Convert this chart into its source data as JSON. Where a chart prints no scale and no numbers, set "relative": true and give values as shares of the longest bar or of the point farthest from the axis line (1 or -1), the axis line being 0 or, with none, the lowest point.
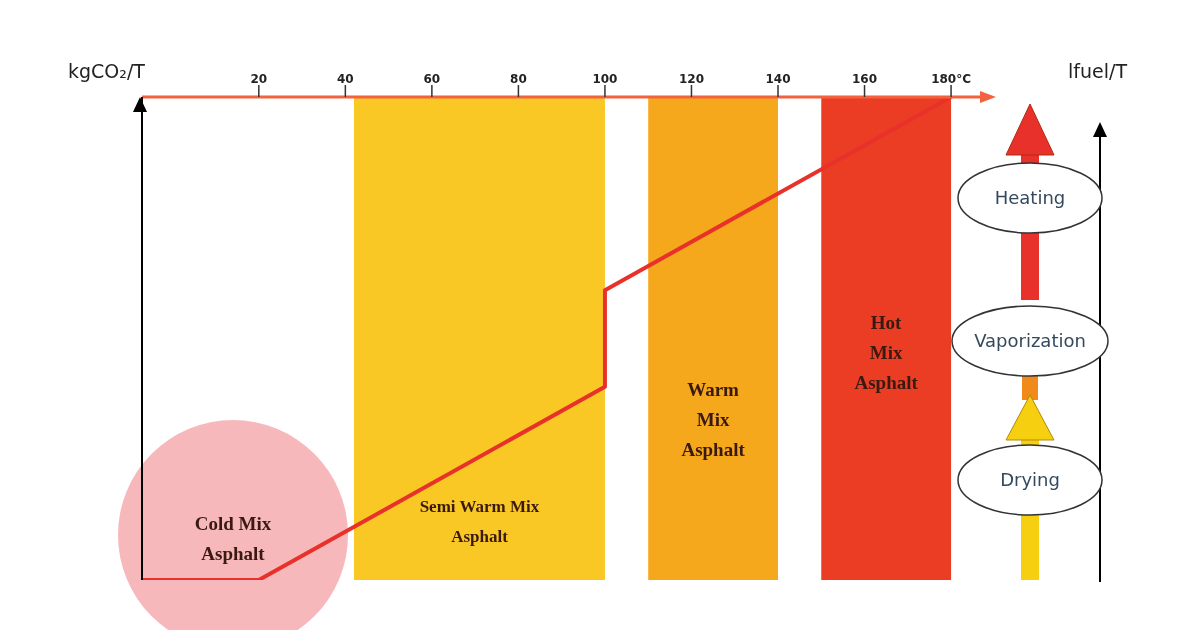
{
  "chart_data": {
    "type": "line",
    "relative": true,
    "ylabel": "kgCO₂/T",
    "y2label": "lfuel/T",
    "x": [
      -7,
      20,
      100,
      100,
      180
    ],
    "series": [
      {
        "color": "#e8312a",
        "values": [
          0,
          0,
          0.4,
          0.6,
          1
        ]
      }
    ],
    "xlim": [
      -7,
      189
    ],
    "xticks": [
      20,
      40,
      60,
      80,
      100,
      120,
      140,
      160,
      {
        "value": 180,
        "label": "180°C"
      }
    ],
    "bands": [
      {
        "axis": "x",
        "from": 42,
        "to": 100,
        "label": "Semi Warm Mix Asphalt",
        "color": "#f9c824"
      },
      {
        "axis": "x",
        "from": 110,
        "to": 140,
        "label": "Warm Mix Asphalt",
        "color": "#f5a81c"
      },
      {
        "axis": "x",
        "from": 150,
        "to": 180,
        "label": "Hot Mix Asphalt",
        "color": "#ea3d23"
      }
    ],
    "annotations": [
      "Cold Mix Asphalt",
      "Heating",
      "Vaporization",
      "Drying"
    ],
    "marker": "none",
    "grid": false,
    "legend": false
  }
}
